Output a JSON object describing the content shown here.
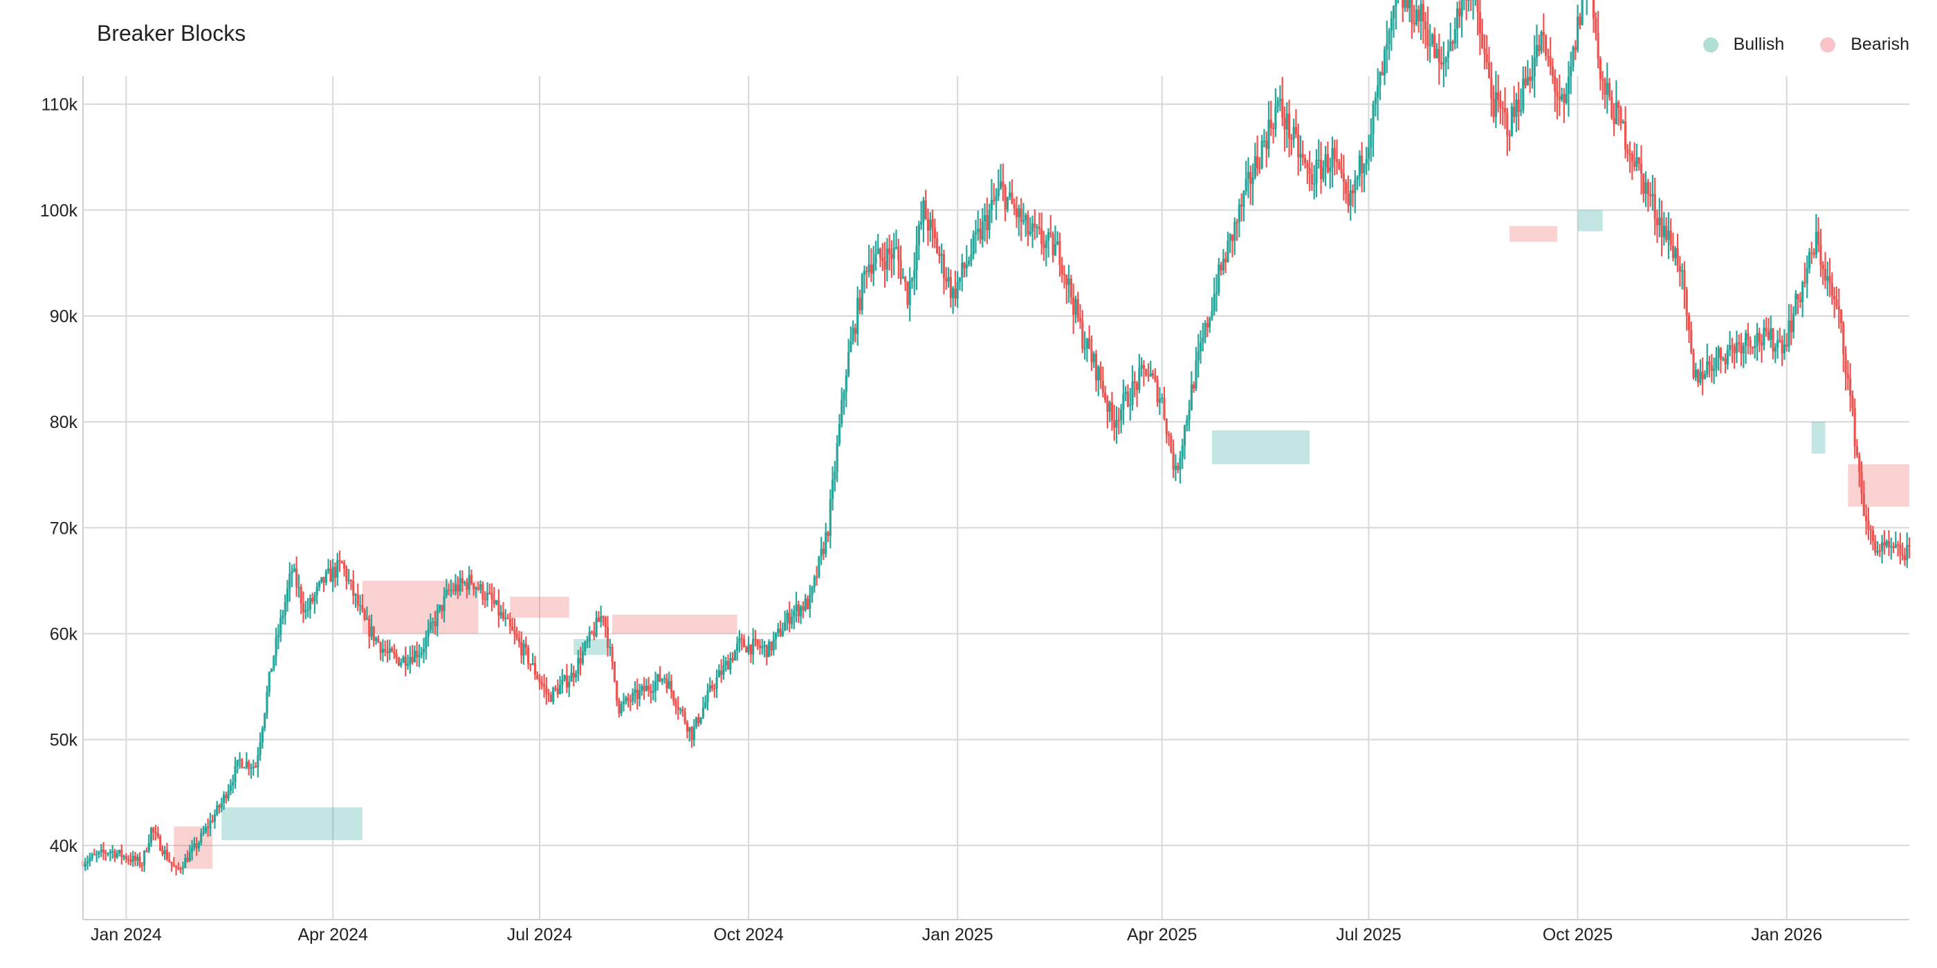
{
  "chart_data": {
    "type": "candlestick",
    "title": "Breaker Blocks",
    "legend": {
      "placement": "top-right",
      "entries": [
        {
          "label": "Bullish",
          "color": "#b2dfd4"
        },
        {
          "label": "Bearish",
          "color": "#f8c4c9"
        }
      ]
    },
    "colors": {
      "up": "#26a69a",
      "down": "#ef5350",
      "bull_zone": "#26a69a",
      "bear_zone": "#ef5350"
    },
    "x_range": [
      "2023-12-13",
      "2026-02-24"
    ],
    "ylim": [
      33000,
      112000
    ],
    "grid": true,
    "y_ticks": [
      {
        "value": 40000,
        "label": "40k"
      },
      {
        "value": 50000,
        "label": "50k"
      },
      {
        "value": 60000,
        "label": "60k"
      },
      {
        "value": 70000,
        "label": "70k"
      },
      {
        "value": 80000,
        "label": "80k"
      },
      {
        "value": 90000,
        "label": "90k"
      },
      {
        "value": 100000,
        "label": "100k"
      },
      {
        "value": 110000,
        "label": "110k"
      }
    ],
    "x_ticks": [
      {
        "date": "2024-01-01",
        "label": "Jan 2024"
      },
      {
        "date": "2024-04-01",
        "label": "Apr 2024"
      },
      {
        "date": "2024-07-01",
        "label": "Jul 2024"
      },
      {
        "date": "2024-10-01",
        "label": "Oct 2024"
      },
      {
        "date": "2025-01-01",
        "label": "Jan 2025"
      },
      {
        "date": "2025-04-01",
        "label": "Apr 2025"
      },
      {
        "date": "2025-07-01",
        "label": "Jul 2025"
      },
      {
        "date": "2025-10-01",
        "label": "Oct 2025"
      },
      {
        "date": "2026-01-01",
        "label": "Jan 2026"
      }
    ],
    "price_path": [
      [
        "2023-12-13",
        38500
      ],
      [
        "2023-12-25",
        39500
      ],
      [
        "2024-01-08",
        38300
      ],
      [
        "2024-01-12",
        41500
      ],
      [
        "2024-01-23",
        37500
      ],
      [
        "2024-02-01",
        40000
      ],
      [
        "2024-02-05",
        41500
      ],
      [
        "2024-02-12",
        44000
      ],
      [
        "2024-02-20",
        48000
      ],
      [
        "2024-02-27",
        47500
      ],
      [
        "2024-03-05",
        57000
      ],
      [
        "2024-03-14",
        66000
      ],
      [
        "2024-03-20",
        62000
      ],
      [
        "2024-03-28",
        65000
      ],
      [
        "2024-04-05",
        66500
      ],
      [
        "2024-04-15",
        61000
      ],
      [
        "2024-04-25",
        58000
      ],
      [
        "2024-05-01",
        57500
      ],
      [
        "2024-05-10",
        58500
      ],
      [
        "2024-05-22",
        64000
      ],
      [
        "2024-06-01",
        65000
      ],
      [
        "2024-06-10",
        63000
      ],
      [
        "2024-06-25",
        58000
      ],
      [
        "2024-07-05",
        54000
      ],
      [
        "2024-07-15",
        56000
      ],
      [
        "2024-07-29",
        62000
      ],
      [
        "2024-08-05",
        53000
      ],
      [
        "2024-08-15",
        54500
      ],
      [
        "2024-08-25",
        56000
      ],
      [
        "2024-09-06",
        50500
      ],
      [
        "2024-09-15",
        55000
      ],
      [
        "2024-09-27",
        59000
      ],
      [
        "2024-10-10",
        58500
      ],
      [
        "2024-10-20",
        62000
      ],
      [
        "2024-10-28",
        63000
      ],
      [
        "2024-11-05",
        70000
      ],
      [
        "2024-11-13",
        85000
      ],
      [
        "2024-11-22",
        95000
      ],
      [
        "2024-12-05",
        96000
      ],
      [
        "2024-12-10",
        92000
      ],
      [
        "2024-12-17",
        100000
      ],
      [
        "2024-12-30",
        92000
      ],
      [
        "2025-01-07",
        96000
      ],
      [
        "2025-01-20",
        102000
      ],
      [
        "2025-02-01",
        98000
      ],
      [
        "2025-02-15",
        96000
      ],
      [
        "2025-02-25",
        88000
      ],
      [
        "2025-03-05",
        84000
      ],
      [
        "2025-03-10",
        80000
      ],
      [
        "2025-03-25",
        85000
      ],
      [
        "2025-04-01",
        82000
      ],
      [
        "2025-04-07",
        75000
      ],
      [
        "2025-04-15",
        84000
      ],
      [
        "2025-04-25",
        93000
      ],
      [
        "2025-05-10",
        103000
      ],
      [
        "2025-05-22",
        110000
      ],
      [
        "2025-06-05",
        103000
      ],
      [
        "2025-06-15",
        105000
      ],
      [
        "2025-06-22",
        100000
      ],
      [
        "2025-07-01",
        107000
      ],
      [
        "2025-07-14",
        120000
      ],
      [
        "2025-07-25",
        118000
      ],
      [
        "2025-08-02",
        113000
      ],
      [
        "2025-08-14",
        122000
      ],
      [
        "2025-08-25",
        110000
      ],
      [
        "2025-09-01",
        108000
      ],
      [
        "2025-09-15",
        116000
      ],
      [
        "2025-09-25",
        109000
      ],
      [
        "2025-10-06",
        124000
      ],
      [
        "2025-10-11",
        112000
      ],
      [
        "2025-10-20",
        108000
      ],
      [
        "2025-11-04",
        100000
      ],
      [
        "2025-11-15",
        95000
      ],
      [
        "2025-11-21",
        84000
      ],
      [
        "2025-12-01",
        86000
      ],
      [
        "2025-12-15",
        88000
      ],
      [
        "2025-12-31",
        87500
      ],
      [
        "2026-01-14",
        97000
      ],
      [
        "2026-01-25",
        89000
      ],
      [
        "2026-02-05",
        70000
      ],
      [
        "2026-02-10",
        68000
      ],
      [
        "2026-02-24",
        67500
      ]
    ],
    "zones": [
      {
        "type": "bearish",
        "start": "2024-01-22",
        "end": "2024-02-08",
        "low": 37800,
        "high": 41800
      },
      {
        "type": "bullish",
        "start": "2024-02-12",
        "end": "2024-04-14",
        "low": 40500,
        "high": 43600
      },
      {
        "type": "bearish",
        "start": "2024-04-14",
        "end": "2024-06-04",
        "low": 60000,
        "high": 65000
      },
      {
        "type": "bearish",
        "start": "2024-06-18",
        "end": "2024-07-14",
        "low": 61500,
        "high": 63500
      },
      {
        "type": "bullish",
        "start": "2024-07-16",
        "end": "2024-07-31",
        "low": 58000,
        "high": 59500
      },
      {
        "type": "bearish",
        "start": "2024-08-02",
        "end": "2024-09-26",
        "low": 60000,
        "high": 61800
      },
      {
        "type": "bullish",
        "start": "2025-04-23",
        "end": "2025-06-05",
        "low": 76000,
        "high": 79200
      },
      {
        "type": "bearish",
        "start": "2025-09-01",
        "end": "2025-09-22",
        "low": 97000,
        "high": 98500
      },
      {
        "type": "bullish",
        "start": "2025-10-01",
        "end": "2025-10-12",
        "low": 98000,
        "high": 100000
      },
      {
        "type": "bullish",
        "start": "2026-01-12",
        "end": "2026-01-18",
        "low": 77000,
        "high": 80000
      },
      {
        "type": "bearish",
        "start": "2026-01-28",
        "end": "2026-02-24",
        "low": 72000,
        "high": 76000
      }
    ]
  }
}
